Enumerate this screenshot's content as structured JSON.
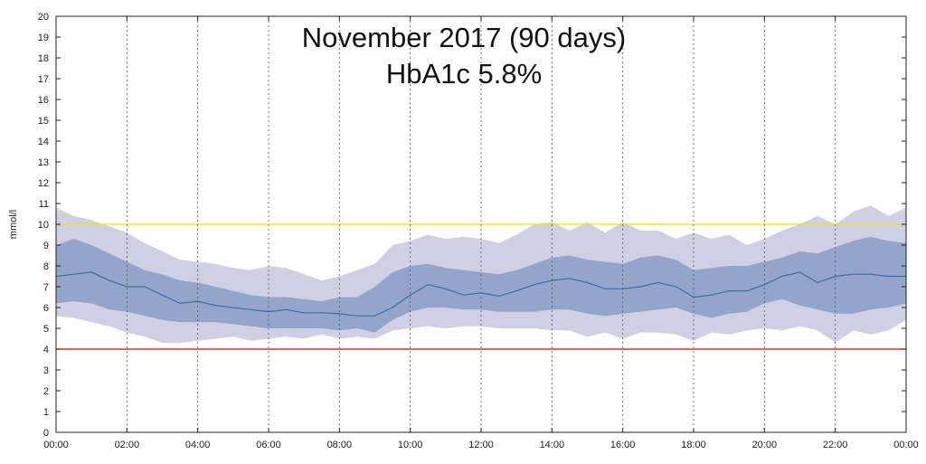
{
  "chart_data": {
    "type": "area",
    "title": "November 2017 (90 days)",
    "subtitle": "HbA1c 5.8%",
    "xlabel": "",
    "ylabel": "mmol/l",
    "x_ticks": [
      "00:00",
      "02:00",
      "04:00",
      "06:00",
      "08:00",
      "10:00",
      "12:00",
      "14:00",
      "16:00",
      "18:00",
      "20:00",
      "22:00",
      "00:00"
    ],
    "y_ticks": [
      "0",
      "1",
      "2",
      "3",
      "4",
      "5",
      "6",
      "7",
      "8",
      "9",
      "10",
      "11",
      "12",
      "13",
      "14",
      "15",
      "16",
      "17",
      "18",
      "19",
      "20"
    ],
    "xlim": [
      0,
      24
    ],
    "ylim": [
      0,
      20
    ],
    "x_hours": [
      0,
      0.5,
      1,
      1.5,
      2,
      2.5,
      3,
      3.5,
      4,
      4.5,
      5,
      5.5,
      6,
      6.5,
      7,
      7.5,
      8,
      8.5,
      9,
      9.5,
      10,
      10.5,
      11,
      11.5,
      12,
      12.5,
      13,
      13.5,
      14,
      14.5,
      15,
      15.5,
      16,
      16.5,
      17,
      17.5,
      18,
      18.5,
      19,
      19.5,
      20,
      20.5,
      21,
      21.5,
      22,
      22.5,
      23,
      23.5,
      24
    ],
    "series": [
      {
        "role": "outer_band",
        "color": "#cfd0e3",
        "upper": [
          10.8,
          10.4,
          10.2,
          9.9,
          9.6,
          9.1,
          8.7,
          8.3,
          8.2,
          8.1,
          7.9,
          7.8,
          8.0,
          7.9,
          7.6,
          7.3,
          7.5,
          7.8,
          8.1,
          9.0,
          9.2,
          9.5,
          9.3,
          9.4,
          9.3,
          9.1,
          9.5,
          10.0,
          10.1,
          9.7,
          10.1,
          9.6,
          10.1,
          9.7,
          9.7,
          9.3,
          9.6,
          9.3,
          9.5,
          9.0,
          9.3,
          9.7,
          10.0,
          10.4,
          10.0,
          10.6,
          10.9,
          10.4,
          10.8
        ],
        "lower": [
          5.6,
          5.5,
          5.3,
          5.1,
          4.8,
          4.6,
          4.3,
          4.3,
          4.4,
          4.5,
          4.6,
          4.4,
          4.5,
          4.6,
          4.5,
          4.7,
          4.5,
          4.6,
          4.5,
          4.9,
          5.0,
          5.1,
          5.0,
          5.1,
          5.1,
          5.0,
          5.0,
          5.0,
          4.9,
          4.9,
          4.6,
          4.8,
          4.5,
          4.8,
          4.8,
          4.7,
          4.4,
          4.8,
          4.7,
          4.9,
          5.0,
          4.9,
          5.1,
          4.9,
          4.3,
          4.9,
          4.7,
          4.9,
          5.4
        ]
      },
      {
        "role": "inner_band",
        "color": "#93a5cb",
        "upper": [
          9.0,
          9.3,
          9.0,
          8.6,
          8.2,
          7.8,
          7.6,
          7.3,
          7.2,
          7.0,
          6.8,
          6.6,
          6.5,
          6.5,
          6.4,
          6.3,
          6.5,
          6.5,
          7.0,
          7.7,
          8.0,
          8.1,
          7.9,
          7.8,
          7.7,
          7.6,
          7.8,
          8.1,
          8.4,
          8.5,
          8.3,
          8.2,
          8.1,
          8.4,
          8.5,
          8.3,
          7.8,
          7.9,
          8.0,
          8.0,
          8.2,
          8.4,
          8.7,
          8.6,
          8.9,
          9.2,
          9.4,
          9.2,
          9.1
        ],
        "lower": [
          6.2,
          6.3,
          6.2,
          5.9,
          5.8,
          5.6,
          5.4,
          5.3,
          5.3,
          5.3,
          5.2,
          5.1,
          5.0,
          5.0,
          5.0,
          5.0,
          4.9,
          5.0,
          4.8,
          5.4,
          5.8,
          6.0,
          6.0,
          5.9,
          5.9,
          5.8,
          5.8,
          5.8,
          5.9,
          5.9,
          5.7,
          5.6,
          5.7,
          5.8,
          5.9,
          6.0,
          5.7,
          5.5,
          5.7,
          5.8,
          6.2,
          6.4,
          6.1,
          5.9,
          5.7,
          5.7,
          5.9,
          6.0,
          6.2
        ]
      },
      {
        "role": "median",
        "color": "#3c6ea4",
        "values": [
          7.5,
          7.6,
          7.7,
          7.3,
          7.0,
          7.0,
          6.6,
          6.2,
          6.3,
          6.1,
          6.0,
          5.9,
          5.8,
          5.9,
          5.75,
          5.75,
          5.7,
          5.6,
          5.6,
          6.0,
          6.6,
          7.1,
          6.9,
          6.6,
          6.7,
          6.55,
          6.8,
          7.1,
          7.3,
          7.4,
          7.2,
          6.9,
          6.9,
          7.0,
          7.2,
          7.0,
          6.5,
          6.6,
          6.8,
          6.8,
          7.1,
          7.5,
          7.7,
          7.2,
          7.5,
          7.6,
          7.6,
          7.5,
          7.5
        ]
      }
    ],
    "reference_lines": [
      {
        "name": "upper-target",
        "value": 10,
        "color": "#e8e800"
      },
      {
        "name": "lower-target",
        "value": 4,
        "color": "#e00000"
      }
    ],
    "grid": {
      "x": true,
      "y": false
    }
  }
}
